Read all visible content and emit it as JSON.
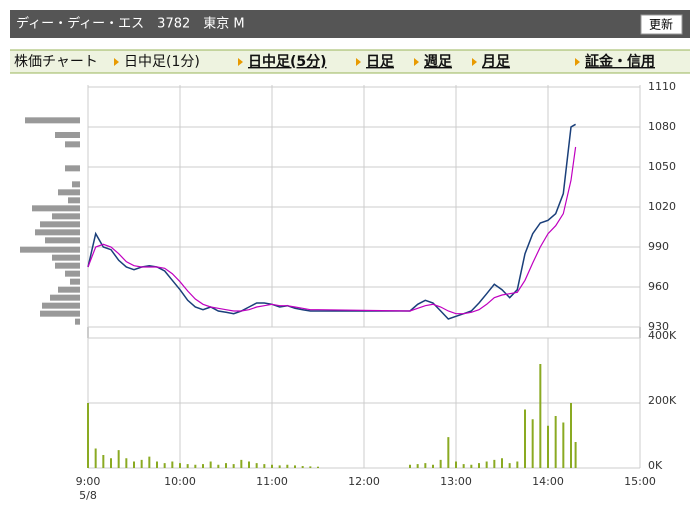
{
  "header": {
    "title": "ディー・ディー・エス　3782　東京 M",
    "button": "更新"
  },
  "tabs": [
    "株価チャート",
    "日中足(1分)",
    "日中足(5分)",
    "日足",
    "週足",
    "月足",
    "証金・信用"
  ],
  "chart_data": {
    "type": "line",
    "x": [
      "9:00",
      "9:05",
      "9:10",
      "9:15",
      "9:20",
      "9:25",
      "9:30",
      "9:35",
      "9:40",
      "9:45",
      "9:50",
      "9:55",
      "10:00",
      "10:05",
      "10:10",
      "10:15",
      "10:20",
      "10:25",
      "10:30",
      "10:35",
      "10:40",
      "10:45",
      "10:50",
      "10:55",
      "11:00",
      "11:05",
      "11:10",
      "11:15",
      "11:20",
      "11:25",
      "11:30",
      "12:30",
      "12:35",
      "12:40",
      "12:45",
      "12:50",
      "12:55",
      "13:00",
      "13:05",
      "13:10",
      "13:15",
      "13:20",
      "13:25",
      "13:30",
      "13:35",
      "13:40",
      "13:45",
      "13:50",
      "13:55",
      "14:00",
      "14:05",
      "14:10",
      "14:15",
      "14:18"
    ],
    "series": [
      {
        "color": "#1a3f7a",
        "values": [
          975,
          1000,
          990,
          988,
          980,
          975,
          973,
          975,
          976,
          975,
          972,
          965,
          958,
          950,
          945,
          943,
          945,
          942,
          941,
          940,
          942,
          945,
          948,
          948,
          947,
          945,
          946,
          944,
          943,
          942,
          942,
          942,
          947,
          950,
          948,
          942,
          936,
          938,
          940,
          942,
          948,
          955,
          962,
          958,
          952,
          958,
          985,
          1000,
          1008,
          1010,
          1015,
          1030,
          1080,
          1082
        ]
      },
      {
        "color": "#c000c0",
        "values": [
          975,
          990,
          992,
          990,
          985,
          979,
          976,
          975,
          975,
          975,
          974,
          970,
          964,
          957,
          951,
          947,
          945,
          944,
          943,
          942,
          942,
          943,
          945,
          946,
          947,
          946,
          946,
          945,
          944,
          943,
          943,
          942,
          944,
          946,
          947,
          945,
          942,
          940,
          940,
          941,
          943,
          947,
          952,
          954,
          955,
          956,
          965,
          978,
          990,
          1000,
          1006,
          1015,
          1040,
          1065
        ]
      }
    ],
    "volume": {
      "color": "#8aaa22",
      "values": [
        200000,
        60000,
        40000,
        30000,
        55000,
        30000,
        20000,
        25000,
        35000,
        20000,
        15000,
        20000,
        15000,
        12000,
        10000,
        12000,
        20000,
        10000,
        15000,
        12000,
        25000,
        20000,
        15000,
        12000,
        10000,
        8000,
        10000,
        8000,
        6000,
        5000,
        4000,
        10000,
        12000,
        15000,
        10000,
        25000,
        95000,
        20000,
        12000,
        10000,
        15000,
        20000,
        25000,
        30000,
        15000,
        20000,
        180000,
        150000,
        320000,
        130000,
        160000,
        140000,
        200000,
        80000
      ],
      "ylim": [
        0,
        400000
      ],
      "yticks": [
        {
          "value": 0,
          "label": "0K"
        },
        {
          "value": 200000,
          "label": "200K"
        },
        {
          "value": 400000,
          "label": "400K"
        }
      ]
    },
    "price_volume": {
      "color": "#999999",
      "prices": [
        1085,
        1074,
        1067,
        1049,
        1037,
        1031,
        1025,
        1019,
        1013,
        1007,
        1001,
        995,
        988,
        982,
        976,
        970,
        964,
        958,
        952,
        946,
        940,
        934
      ],
      "values": [
        55,
        25,
        15,
        15,
        8,
        22,
        12,
        48,
        28,
        40,
        45,
        35,
        60,
        28,
        25,
        15,
        10,
        22,
        30,
        38,
        40,
        5
      ]
    },
    "ylim": [
      930,
      1110
    ],
    "yticks": [
      930,
      960,
      990,
      1020,
      1050,
      1080,
      1110
    ],
    "xlim": [
      "9:00",
      "15:00"
    ],
    "xticks": [
      "9:00",
      "10:00",
      "11:00",
      "12:00",
      "13:00",
      "14:00",
      "15:00"
    ],
    "date_label": "5/8",
    "grid": true
  }
}
